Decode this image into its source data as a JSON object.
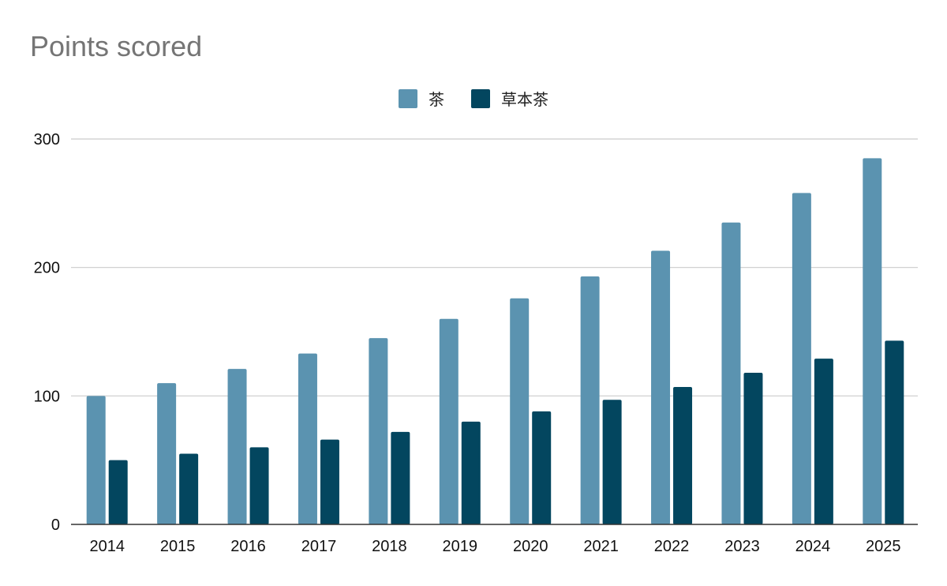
{
  "chart_data": {
    "type": "bar",
    "title": "Points scored",
    "categories": [
      "2014",
      "2015",
      "2016",
      "2017",
      "2018",
      "2019",
      "2020",
      "2021",
      "2022",
      "2023",
      "2024",
      "2025"
    ],
    "series": [
      {
        "name": "茶",
        "color": "#5b93b0",
        "values": [
          100,
          110,
          121,
          133,
          145,
          160,
          176,
          193,
          213,
          235,
          258,
          285
        ]
      },
      {
        "name": "草本茶",
        "color": "#03465f",
        "values": [
          50,
          55,
          60,
          66,
          72,
          80,
          88,
          97,
          107,
          118,
          129,
          143
        ]
      }
    ],
    "ylim": [
      0,
      300
    ],
    "yticks": [
      0,
      100,
      200,
      300
    ],
    "grid": true,
    "legend_position": "top"
  }
}
